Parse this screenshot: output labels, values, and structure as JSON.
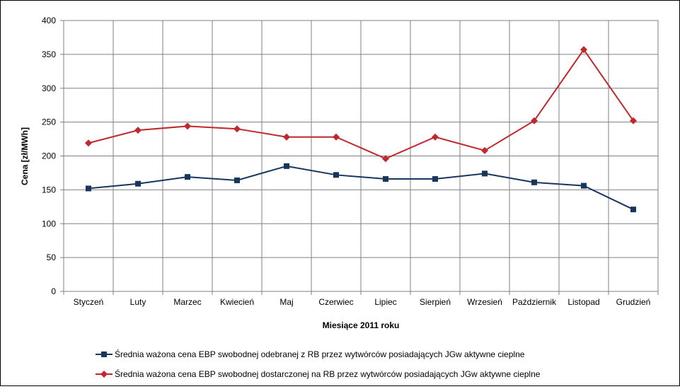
{
  "chart_data": {
    "type": "line",
    "categories": [
      "Styczeń",
      "Luty",
      "Marzec",
      "Kwiecień",
      "Maj",
      "Czerwiec",
      "Lipiec",
      "Sierpień",
      "Wrzesień",
      "Październik",
      "Listopad",
      "Grudzień"
    ],
    "series": [
      {
        "name": "Średnia ważona cena EBP swobodnej odebranej z RB przez wytwórców posiadających JGw aktywne cieplne",
        "values": [
          152,
          159,
          169,
          164,
          185,
          172,
          166,
          166,
          174,
          161,
          156,
          121
        ],
        "color": "#17365d",
        "marker": "square"
      },
      {
        "name": "Średnia ważona cena EBP swobodnej dostarczonej na RB przez wytwórców posiadających JGw aktywne cieplne",
        "values": [
          219,
          238,
          244,
          240,
          228,
          228,
          196,
          228,
          208,
          252,
          357,
          252
        ],
        "color": "#c0282d",
        "marker": "diamond"
      }
    ],
    "xlabel": "Miesiące 2011  roku",
    "ylabel": "Cena [zł/MWh]",
    "ylim": [
      0,
      400
    ],
    "yticks": [
      0,
      50,
      100,
      150,
      200,
      250,
      300,
      350,
      400
    ],
    "grid": true,
    "legend_position": "bottom"
  }
}
